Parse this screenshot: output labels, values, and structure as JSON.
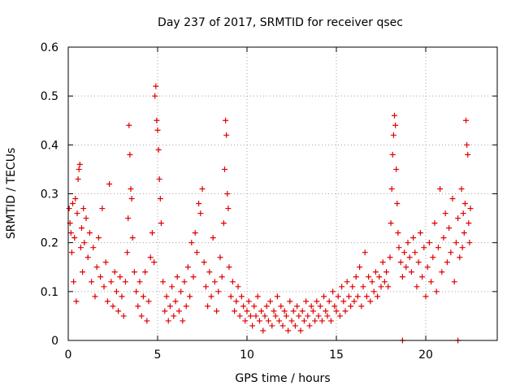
{
  "chart_data": {
    "type": "scatter",
    "title": "Day 237 of 2017, SRMTID for receiver qsec",
    "xlabel": "GPS time / hours",
    "ylabel": "SRMTID / TECUs",
    "xlim": [
      0,
      24
    ],
    "ylim": [
      0,
      0.6
    ],
    "xticks": [
      0,
      5,
      10,
      15,
      20
    ],
    "xtick_labels": [
      "0",
      "5",
      "10",
      "15",
      "20"
    ],
    "yticks": [
      0,
      0.1,
      0.2,
      0.3,
      0.4,
      0.5,
      0.6
    ],
    "ytick_labels": [
      "0",
      "0.1",
      "0.2",
      "0.3",
      "0.4",
      "0.5",
      "0.6"
    ],
    "grid": true,
    "marker": "+",
    "color": "#e00000",
    "series": [
      {
        "name": "SRMTID",
        "points": [
          [
            0.05,
            0.27
          ],
          [
            0.1,
            0.24
          ],
          [
            0.15,
            0.22
          ],
          [
            0.2,
            0.18
          ],
          [
            0.25,
            0.28
          ],
          [
            0.3,
            0.12
          ],
          [
            0.35,
            0.21
          ],
          [
            0.4,
            0.29
          ],
          [
            0.45,
            0.08
          ],
          [
            0.5,
            0.26
          ],
          [
            0.55,
            0.33
          ],
          [
            0.6,
            0.35
          ],
          [
            0.65,
            0.36
          ],
          [
            0.7,
            0.19
          ],
          [
            0.75,
            0.23
          ],
          [
            0.8,
            0.14
          ],
          [
            0.85,
            0.27
          ],
          [
            0.9,
            0.2
          ],
          [
            1.0,
            0.25
          ],
          [
            1.1,
            0.17
          ],
          [
            1.2,
            0.22
          ],
          [
            1.3,
            0.12
          ],
          [
            1.4,
            0.19
          ],
          [
            1.5,
            0.09
          ],
          [
            1.6,
            0.15
          ],
          [
            1.7,
            0.21
          ],
          [
            1.8,
            0.13
          ],
          [
            1.9,
            0.27
          ],
          [
            2.0,
            0.11
          ],
          [
            2.1,
            0.16
          ],
          [
            2.2,
            0.08
          ],
          [
            2.3,
            0.32
          ],
          [
            2.4,
            0.12
          ],
          [
            2.5,
            0.07
          ],
          [
            2.6,
            0.14
          ],
          [
            2.7,
            0.1
          ],
          [
            2.8,
            0.06
          ],
          [
            2.9,
            0.13
          ],
          [
            3.0,
            0.09
          ],
          [
            3.1,
            0.05
          ],
          [
            3.2,
            0.12
          ],
          [
            3.3,
            0.18
          ],
          [
            3.35,
            0.25
          ],
          [
            3.4,
            0.44
          ],
          [
            3.45,
            0.38
          ],
          [
            3.5,
            0.31
          ],
          [
            3.55,
            0.29
          ],
          [
            3.6,
            0.21
          ],
          [
            3.7,
            0.14
          ],
          [
            3.8,
            0.1
          ],
          [
            3.9,
            0.07
          ],
          [
            4.0,
            0.12
          ],
          [
            4.1,
            0.05
          ],
          [
            4.2,
            0.09
          ],
          [
            4.3,
            0.14
          ],
          [
            4.4,
            0.04
          ],
          [
            4.5,
            0.08
          ],
          [
            4.6,
            0.17
          ],
          [
            4.7,
            0.22
          ],
          [
            4.8,
            0.16
          ],
          [
            4.85,
            0.5
          ],
          [
            4.9,
            0.52
          ],
          [
            4.95,
            0.45
          ],
          [
            5.0,
            0.43
          ],
          [
            5.05,
            0.39
          ],
          [
            5.1,
            0.33
          ],
          [
            5.15,
            0.29
          ],
          [
            5.2,
            0.24
          ],
          [
            5.3,
            0.12
          ],
          [
            5.4,
            0.06
          ],
          [
            5.5,
            0.09
          ],
          [
            5.6,
            0.04
          ],
          [
            5.7,
            0.07
          ],
          [
            5.8,
            0.11
          ],
          [
            5.9,
            0.05
          ],
          [
            6.0,
            0.08
          ],
          [
            6.1,
            0.13
          ],
          [
            6.2,
            0.06
          ],
          [
            6.3,
            0.1
          ],
          [
            6.4,
            0.04
          ],
          [
            6.5,
            0.12
          ],
          [
            6.6,
            0.07
          ],
          [
            6.7,
            0.15
          ],
          [
            6.8,
            0.09
          ],
          [
            6.9,
            0.2
          ],
          [
            7.0,
            0.13
          ],
          [
            7.1,
            0.22
          ],
          [
            7.2,
            0.18
          ],
          [
            7.3,
            0.28
          ],
          [
            7.4,
            0.26
          ],
          [
            7.5,
            0.31
          ],
          [
            7.6,
            0.16
          ],
          [
            7.7,
            0.11
          ],
          [
            7.8,
            0.07
          ],
          [
            7.9,
            0.14
          ],
          [
            8.0,
            0.09
          ],
          [
            8.1,
            0.21
          ],
          [
            8.2,
            0.12
          ],
          [
            8.3,
            0.06
          ],
          [
            8.4,
            0.1
          ],
          [
            8.5,
            0.17
          ],
          [
            8.6,
            0.13
          ],
          [
            8.7,
            0.24
          ],
          [
            8.75,
            0.35
          ],
          [
            8.8,
            0.45
          ],
          [
            8.85,
            0.42
          ],
          [
            8.9,
            0.3
          ],
          [
            8.95,
            0.27
          ],
          [
            9.0,
            0.15
          ],
          [
            9.1,
            0.09
          ],
          [
            9.2,
            0.12
          ],
          [
            9.3,
            0.06
          ],
          [
            9.4,
            0.08
          ],
          [
            9.5,
            0.11
          ],
          [
            9.6,
            0.05
          ],
          [
            9.7,
            0.09
          ],
          [
            9.8,
            0.07
          ],
          [
            9.9,
            0.04
          ],
          [
            10.0,
            0.06
          ],
          [
            10.1,
            0.08
          ],
          [
            10.2,
            0.05
          ],
          [
            10.3,
            0.03
          ],
          [
            10.4,
            0.07
          ],
          [
            10.5,
            0.05
          ],
          [
            10.6,
            0.09
          ],
          [
            10.7,
            0.04
          ],
          [
            10.8,
            0.06
          ],
          [
            10.9,
            0.02
          ],
          [
            11.0,
            0.05
          ],
          [
            11.1,
            0.07
          ],
          [
            11.2,
            0.04
          ],
          [
            11.3,
            0.08
          ],
          [
            11.4,
            0.03
          ],
          [
            11.5,
            0.06
          ],
          [
            11.6,
            0.05
          ],
          [
            11.7,
            0.09
          ],
          [
            11.8,
            0.04
          ],
          [
            11.9,
            0.07
          ],
          [
            12.0,
            0.03
          ],
          [
            12.1,
            0.06
          ],
          [
            12.2,
            0.05
          ],
          [
            12.3,
            0.02
          ],
          [
            12.4,
            0.08
          ],
          [
            12.5,
            0.04
          ],
          [
            12.6,
            0.06
          ],
          [
            12.7,
            0.03
          ],
          [
            12.8,
            0.07
          ],
          [
            12.9,
            0.05
          ],
          [
            13.0,
            0.02
          ],
          [
            13.1,
            0.06
          ],
          [
            13.2,
            0.04
          ],
          [
            13.3,
            0.08
          ],
          [
            13.4,
            0.05
          ],
          [
            13.5,
            0.03
          ],
          [
            13.6,
            0.07
          ],
          [
            13.7,
            0.06
          ],
          [
            13.8,
            0.04
          ],
          [
            13.9,
            0.08
          ],
          [
            14.0,
            0.05
          ],
          [
            14.1,
            0.07
          ],
          [
            14.2,
            0.04
          ],
          [
            14.3,
            0.09
          ],
          [
            14.4,
            0.06
          ],
          [
            14.5,
            0.05
          ],
          [
            14.6,
            0.08
          ],
          [
            14.7,
            0.04
          ],
          [
            14.8,
            0.1
          ],
          [
            14.9,
            0.07
          ],
          [
            15.0,
            0.06
          ],
          [
            15.1,
            0.09
          ],
          [
            15.2,
            0.05
          ],
          [
            15.3,
            0.11
          ],
          [
            15.4,
            0.08
          ],
          [
            15.5,
            0.06
          ],
          [
            15.6,
            0.12
          ],
          [
            15.7,
            0.09
          ],
          [
            15.8,
            0.07
          ],
          [
            15.9,
            0.11
          ],
          [
            16.0,
            0.08
          ],
          [
            16.1,
            0.13
          ],
          [
            16.2,
            0.09
          ],
          [
            16.3,
            0.15
          ],
          [
            16.4,
            0.07
          ],
          [
            16.5,
            0.11
          ],
          [
            16.6,
            0.18
          ],
          [
            16.7,
            0.09
          ],
          [
            16.8,
            0.13
          ],
          [
            16.9,
            0.08
          ],
          [
            17.0,
            0.12
          ],
          [
            17.1,
            0.1
          ],
          [
            17.2,
            0.14
          ],
          [
            17.3,
            0.09
          ],
          [
            17.4,
            0.13
          ],
          [
            17.5,
            0.11
          ],
          [
            17.6,
            0.16
          ],
          [
            17.7,
            0.12
          ],
          [
            17.8,
            0.14
          ],
          [
            17.9,
            0.11
          ],
          [
            18.0,
            0.17
          ],
          [
            18.05,
            0.24
          ],
          [
            18.1,
            0.31
          ],
          [
            18.15,
            0.38
          ],
          [
            18.2,
            0.42
          ],
          [
            18.25,
            0.46
          ],
          [
            18.3,
            0.44
          ],
          [
            18.35,
            0.35
          ],
          [
            18.4,
            0.28
          ],
          [
            18.45,
            0.22
          ],
          [
            18.5,
            0.19
          ],
          [
            18.6,
            0.16
          ],
          [
            18.7,
            0.13
          ],
          [
            18.8,
            0.18
          ],
          [
            18.9,
            0.15
          ],
          [
            19.0,
            0.2
          ],
          [
            19.1,
            0.17
          ],
          [
            19.2,
            0.14
          ],
          [
            19.3,
            0.21
          ],
          [
            19.4,
            0.18
          ],
          [
            19.5,
            0.11
          ],
          [
            19.6,
            0.16
          ],
          [
            19.7,
            0.22
          ],
          [
            19.8,
            0.13
          ],
          [
            19.9,
            0.19
          ],
          [
            20.0,
            0.09
          ],
          [
            20.1,
            0.15
          ],
          [
            20.2,
            0.2
          ],
          [
            20.3,
            0.12
          ],
          [
            20.4,
            0.17
          ],
          [
            20.5,
            0.24
          ],
          [
            20.6,
            0.1
          ],
          [
            20.7,
            0.19
          ],
          [
            20.8,
            0.31
          ],
          [
            20.9,
            0.14
          ],
          [
            21.0,
            0.21
          ],
          [
            21.1,
            0.26
          ],
          [
            21.2,
            0.16
          ],
          [
            21.3,
            0.23
          ],
          [
            21.4,
            0.18
          ],
          [
            21.5,
            0.29
          ],
          [
            21.6,
            0.12
          ],
          [
            21.7,
            0.2
          ],
          [
            21.8,
            0.25
          ],
          [
            21.9,
            0.17
          ],
          [
            22.0,
            0.31
          ],
          [
            22.05,
            0.19
          ],
          [
            22.1,
            0.26
          ],
          [
            22.15,
            0.22
          ],
          [
            22.2,
            0.28
          ],
          [
            22.25,
            0.45
          ],
          [
            22.3,
            0.4
          ],
          [
            22.35,
            0.38
          ],
          [
            22.4,
            0.24
          ],
          [
            22.45,
            0.2
          ],
          [
            22.5,
            0.27
          ],
          [
            18.7,
            0.0
          ],
          [
            21.8,
            0.0
          ]
        ]
      }
    ]
  }
}
